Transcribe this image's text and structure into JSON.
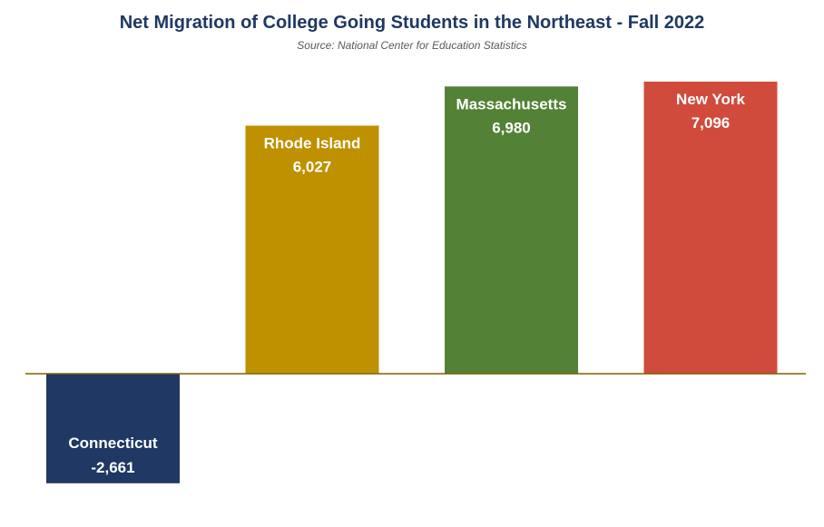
{
  "title": "Net Migration of College Going Students in the Northeast - Fall 2022",
  "subtitle": "Source: National Center for Education Statistics",
  "chart_data": {
    "type": "bar",
    "title": "Net Migration of College Going Students in the Northeast - Fall 2022",
    "subtitle": "Source: National Center for Education Statistics",
    "categories": [
      "Connecticut",
      "Rhode Island",
      "Massachusetts",
      "New York"
    ],
    "values": [
      -2661,
      6027,
      6980,
      7096
    ],
    "value_labels": [
      "-2,661",
      "6,027",
      "6,980",
      "7,096"
    ],
    "colors": [
      "#1f3864",
      "#bf9000",
      "#538135",
      "#d04b3c"
    ],
    "baseline_color": "#7f6000",
    "xlabel": "",
    "ylabel": "",
    "grid": false,
    "legend": "none"
  }
}
